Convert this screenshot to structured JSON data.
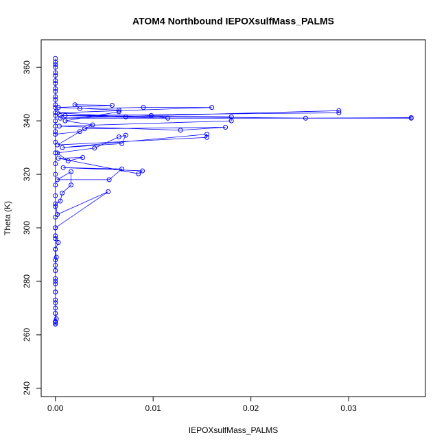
{
  "chart_data": {
    "type": "line",
    "marker": "circle",
    "title": "ATOM4 Northbound IEPOXsulfMass_PALMS",
    "xlabel": "IEPOXsulfMass_PALMS",
    "ylabel": "Theta (K)",
    "color": "#0000ff",
    "x": [
      0,
      0,
      0.0001,
      0,
      0,
      0,
      0,
      0,
      0,
      0,
      0,
      0.0001,
      0,
      0.0003,
      0,
      0,
      0.0054,
      0.0002,
      0,
      0.0005,
      0.0007,
      0.0016,
      0.0016,
      0.0002,
      0.0055,
      0.0068,
      0.0008,
      0.0089,
      0.0085,
      0.0003,
      0.0028,
      0.0013,
      0.0002,
      0.004,
      0.0065,
      0.0072,
      0.0068,
      0.0007,
      0.0155,
      0.0155,
      0.0002,
      0.003,
      0.0174,
      0.0128,
      0.0004,
      0.018,
      0.018,
      0.001,
      0.029,
      0.029,
      0.0005,
      0.0364,
      0.0364,
      0.0256,
      0.0005,
      0.0115,
      0.0098,
      0.0072,
      0.0002,
      0.016,
      0.009,
      0.0025,
      0.002,
      0.0058,
      0.0003,
      0.0065,
      0.0065,
      0.001,
      0.0038,
      0.0025,
      0,
      0,
      0,
      0,
      0,
      0,
      0,
      0,
      0,
      0,
      0,
      0,
      0,
      0,
      0,
      0,
      0,
      0,
      0,
      0,
      0,
      0,
      0,
      0,
      0,
      0,
      0,
      0,
      0,
      0,
      0,
      0,
      0,
      0,
      0,
      0,
      0,
      0,
      0
    ],
    "values": [
      264,
      265,
      266,
      268,
      270,
      273,
      276,
      279,
      281,
      284,
      286,
      289,
      292,
      294.5,
      297,
      300,
      313.5,
      305,
      309,
      310,
      313,
      316,
      321,
      318,
      318,
      322,
      322.5,
      321.3,
      320.2,
      326,
      326.3,
      325,
      328,
      329.8,
      334,
      334.6,
      331.5,
      330,
      335,
      333.8,
      331,
      337,
      337.6,
      336.5,
      338,
      340,
      341.5,
      342,
      343,
      343.8,
      341,
      341,
      341.2,
      341,
      342,
      341,
      342,
      341.5,
      343,
      345,
      345,
      344.6,
      346,
      345.8,
      345,
      344,
      343.4,
      340,
      338.5,
      336,
      335,
      338,
      342,
      345,
      348,
      351,
      354,
      357,
      360,
      362,
      363.3,
      361,
      358,
      355,
      352,
      349,
      346,
      343,
      340,
      336,
      332,
      328,
      324,
      320,
      316,
      312,
      308,
      304,
      300,
      296,
      292,
      288,
      284,
      280,
      276,
      272,
      268,
      265,
      264.5
    ],
    "xlim": [
      -0.001456,
      0.037856
    ],
    "ylim": [
      236.9,
      370.3
    ],
    "xticks": [
      {
        "value": 0,
        "label": "0.00"
      },
      {
        "value": 0.01,
        "label": "0.01"
      },
      {
        "value": 0.02,
        "label": "0.02"
      },
      {
        "value": 0.03,
        "label": "0.03"
      }
    ],
    "yticks": [
      240,
      260,
      280,
      300,
      320,
      340,
      360
    ]
  }
}
